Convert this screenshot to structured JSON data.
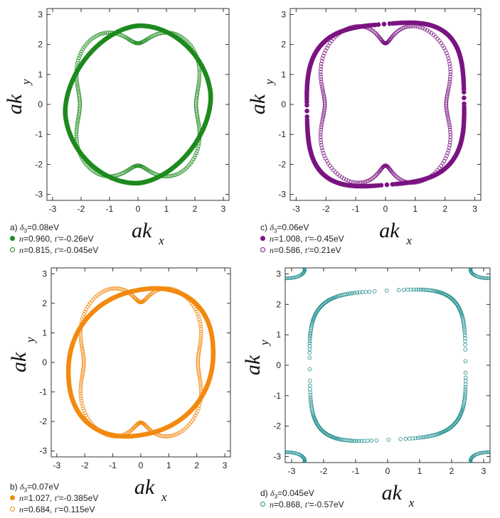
{
  "chart_data": [
    {
      "panel": "a",
      "type": "scatter",
      "xlabel": "ak",
      "xlabel_sub": "x",
      "ylabel": "ak",
      "ylabel_sub": "y",
      "xlim": [
        -3.2,
        3.2
      ],
      "ylim": [
        -3.2,
        3.2
      ],
      "ticks": [
        -3,
        -2,
        -1,
        0,
        1,
        2,
        3
      ],
      "caption": {
        "panel_letter": "a)",
        "delta_symbol": "δ",
        "delta_sub": "3",
        "delta_value": "=0.08eV"
      },
      "series": [
        {
          "n_label": "n",
          "n_value": "=0.960, ",
          "t_label": "t'",
          "t_value": "=-0.26eV",
          "color": "#1e8a1e",
          "filled": true,
          "shape": "superellipse",
          "params": {
            "p": 1.8,
            "a": 2.62,
            "b": 2.62,
            "rot": 0.22,
            "sy": 1.0,
            "flat": 0.0
          }
        },
        {
          "n_label": "n",
          "n_value": "=0.815, ",
          "t_label": "t'",
          "t_value": "=-0.045eV",
          "color": "#1e8a1e",
          "filled": false,
          "shape": "swirl",
          "params": {
            "R0": 2.62,
            "amp": 0.18,
            "skew": 0.55
          }
        }
      ]
    },
    {
      "panel": "c",
      "type": "scatter",
      "xlabel": "ak",
      "xlabel_sub": "x",
      "ylabel": "ak",
      "ylabel_sub": "y",
      "xlim": [
        -3.2,
        3.2
      ],
      "ylim": [
        -3.2,
        3.2
      ],
      "ticks": [
        -3,
        -2,
        -1,
        0,
        1,
        2,
        3
      ],
      "caption": {
        "panel_letter": "c)",
        "delta_symbol": "δ",
        "delta_sub": "3",
        "delta_value": "=0.06eV"
      },
      "series": [
        {
          "n_label": "n",
          "n_value": "=1.008, ",
          "t_label": "t'",
          "t_value": "=-0.45eV",
          "color": "#7b1482",
          "filled": true,
          "shape": "superellipse",
          "params": {
            "p": 3.2,
            "a": 2.68,
            "b": 2.68,
            "rot": 0.18,
            "sy": 1.0,
            "flat": 0.0
          }
        },
        {
          "n_label": "n",
          "n_value": "=0.586, ",
          "t_label": "t'",
          "t_value": "=0.21eV",
          "color": "#7b1482",
          "filled": false,
          "shape": "swirl",
          "params": {
            "R0": 2.75,
            "amp": 0.22,
            "skew": 0.9
          }
        }
      ]
    },
    {
      "panel": "b",
      "type": "scatter",
      "xlabel": "ak",
      "xlabel_sub": "x",
      "ylabel": "ak",
      "ylabel_sub": "y",
      "xlim": [
        -3.2,
        3.2
      ],
      "ylim": [
        -3.2,
        3.2
      ],
      "ticks": [
        -3,
        -2,
        -1,
        0,
        1,
        2,
        3
      ],
      "caption": {
        "panel_letter": "b)",
        "delta_symbol": "δ",
        "delta_sub": "3",
        "delta_value": "=0.07eV"
      },
      "series": [
        {
          "n_label": "n",
          "n_value": "=1.027, ",
          "t_label": "t'",
          "t_value": "=-0.385eV",
          "color": "#f28a10",
          "filled": true,
          "shape": "superellipse",
          "params": {
            "p": 2.2,
            "a": 2.75,
            "b": 2.45,
            "rot": 0.35,
            "sy": 1.0,
            "flat": 0.0
          }
        },
        {
          "n_label": "n",
          "n_value": "=0.684, ",
          "t_label": "t'",
          "t_value": "=0.115eV",
          "color": "#f28a10",
          "filled": false,
          "shape": "swirl",
          "params": {
            "R0": 2.68,
            "amp": 0.2,
            "skew": 0.8
          }
        }
      ]
    },
    {
      "panel": "d",
      "type": "scatter",
      "xlabel": "ak",
      "xlabel_sub": "x",
      "ylabel": "ak",
      "ylabel_sub": "y",
      "xlim": [
        -3.2,
        3.2
      ],
      "ylim": [
        -3.2,
        3.2
      ],
      "ticks": [
        -3,
        -2,
        -1,
        0,
        1,
        2,
        3
      ],
      "caption": {
        "panel_letter": "d)",
        "delta_symbol": "δ",
        "delta_sub": "3",
        "delta_value": "=0.045eV"
      },
      "series": [
        {
          "n_label": "n",
          "n_value": "=0.868, ",
          "t_label": "t'",
          "t_value": "=-0.57eV",
          "color": "#1e8c8c",
          "filled": false,
          "shape": "superellipse",
          "params": {
            "p": 4.0,
            "a": 2.45,
            "b": 2.45,
            "rot": 0.12,
            "sy": 1.0,
            "flat": 0.0
          },
          "corner_arcs": true
        }
      ]
    }
  ]
}
